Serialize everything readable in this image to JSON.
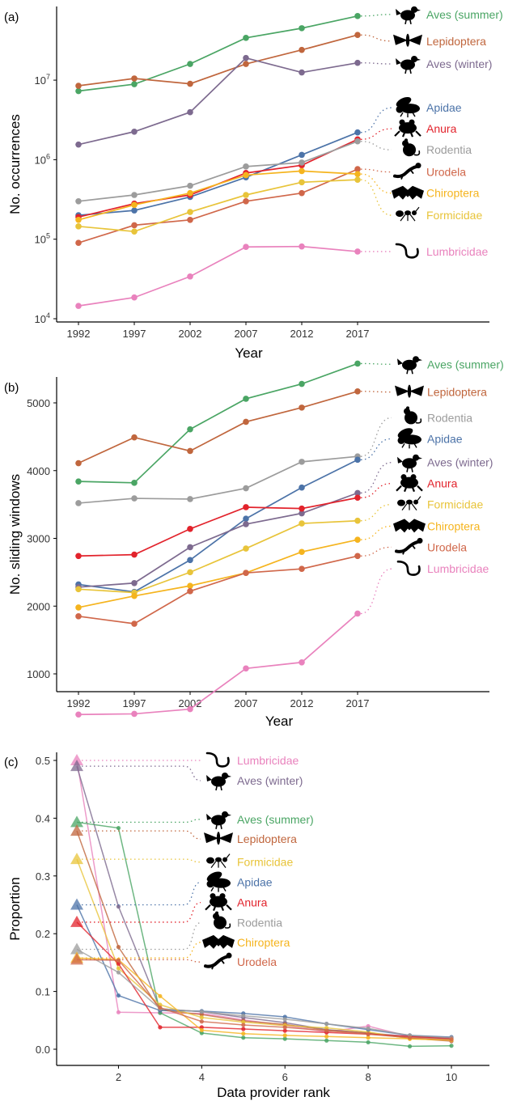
{
  "colors": {
    "Aves (summer)": "#4aa564",
    "Lepidoptera": "#c0663d",
    "Aves (winter)": "#7d6a8f",
    "Apidae": "#4c73a8",
    "Anura": "#e2232c",
    "Rodentia": "#9c9c9c",
    "Urodela": "#d0674a",
    "Chiroptera": "#f5b41e",
    "Formicidae": "#e8c43a",
    "Lumbricidae": "#e982bd"
  },
  "icons": {
    "Aves (summer)": "bird-icon",
    "Aves (winter)": "bird-icon",
    "Lepidoptera": "moth-icon",
    "Apidae": "bee-icon",
    "Anura": "frog-icon",
    "Rodentia": "rodent-icon",
    "Urodela": "salamander-icon",
    "Chiroptera": "bat-icon",
    "Formicidae": "ant-icon",
    "Lumbricidae": "worm-icon"
  },
  "chart_data": [
    {
      "panel": "(a)",
      "type": "line",
      "xlabel": "Year",
      "ylabel": "No. occurrences",
      "yscale": "log",
      "ylim": [
        10000,
        70000000
      ],
      "yticks": [
        10000,
        100000,
        1000000,
        10000000
      ],
      "ytick_labels": [
        [
          "10",
          "4"
        ],
        [
          "10",
          "5"
        ],
        [
          "10",
          "6"
        ],
        [
          "10",
          "7"
        ]
      ],
      "x": [
        1992,
        1997,
        2002,
        2007,
        2012,
        2017
      ],
      "xticks": [
        "1992",
        "1997",
        "2002",
        "2007",
        "2012",
        "2017"
      ],
      "series": [
        {
          "name": "Aves (summer)",
          "values": [
            7300000,
            8900000,
            16000000,
            34000000,
            45000000,
            64000000
          ]
        },
        {
          "name": "Lepidoptera",
          "values": [
            8500000,
            10500000,
            9000000,
            16000000,
            24000000,
            37000000
          ]
        },
        {
          "name": "Aves (winter)",
          "values": [
            1550000,
            2250000,
            3950000,
            19000000,
            12500000,
            16500000
          ]
        },
        {
          "name": "Apidae",
          "values": [
            200000,
            230000,
            340000,
            600000,
            1150000,
            2200000
          ]
        },
        {
          "name": "Anura",
          "values": [
            190000,
            280000,
            360000,
            680000,
            850000,
            1800000
          ]
        },
        {
          "name": "Rodentia",
          "values": [
            300000,
            360000,
            470000,
            820000,
            920000,
            1700000
          ]
        },
        {
          "name": "Urodela",
          "values": [
            90000,
            150000,
            175000,
            300000,
            380000,
            760000
          ]
        },
        {
          "name": "Chiroptera",
          "values": [
            175000,
            270000,
            380000,
            640000,
            720000,
            660000
          ]
        },
        {
          "name": "Formicidae",
          "values": [
            145000,
            125000,
            220000,
            360000,
            520000,
            560000
          ]
        },
        {
          "name": "Lumbricidae",
          "values": [
            14500,
            18500,
            34000,
            80000,
            81000,
            70000
          ]
        }
      ],
      "labels": [
        {
          "series": "Aves (summer)",
          "text": "Aves (summer)",
          "pos": 67000000
        },
        {
          "series": "Lepidoptera",
          "text": "Lepidoptera",
          "pos": 31000000
        },
        {
          "series": "Aves (winter)",
          "text": "Aves (winter)",
          "pos": 16000000
        },
        {
          "series": "Apidae",
          "text": "Apidae",
          "pos": 4500000
        },
        {
          "series": "Anura",
          "text": "Anura",
          "pos": 2450000
        },
        {
          "series": "Rodentia",
          "text": "Rodentia",
          "pos": 1330000
        },
        {
          "series": "Urodela",
          "text": "Urodela",
          "pos": 700000
        },
        {
          "series": "Chiroptera",
          "text": "Chiroptera",
          "pos": 380000
        },
        {
          "series": "Formicidae",
          "text": "Formicidae",
          "pos": 200000
        },
        {
          "series": "Lumbricidae",
          "text": "Lumbricidae",
          "pos": 70000
        }
      ]
    },
    {
      "panel": "(b)",
      "type": "line",
      "xlabel": "Year",
      "ylabel": "No. sliding windows",
      "ylim": [
        0,
        6000
      ],
      "yticks": [
        1000,
        2000,
        3000,
        4000,
        5000
      ],
      "x": [
        1992,
        1997,
        2002,
        2007,
        2012,
        2017
      ],
      "xticks": [
        "1992",
        "1997",
        "2002",
        "2007",
        "2012",
        "2017"
      ],
      "series": [
        {
          "name": "Aves (summer)",
          "values": [
            3840,
            3820,
            4610,
            5060,
            5280,
            5580
          ]
        },
        {
          "name": "Lepidoptera",
          "values": [
            4110,
            4490,
            4290,
            4720,
            4930,
            5170
          ]
        },
        {
          "name": "Rodentia",
          "values": [
            3520,
            3590,
            3580,
            3740,
            4130,
            4210
          ]
        },
        {
          "name": "Apidae",
          "values": [
            2320,
            2210,
            2680,
            3290,
            3750,
            4160
          ]
        },
        {
          "name": "Aves (winter)",
          "values": [
            2280,
            2340,
            2870,
            3210,
            3370,
            3670
          ]
        },
        {
          "name": "Anura",
          "values": [
            2740,
            2760,
            3140,
            3460,
            3440,
            3600
          ]
        },
        {
          "name": "Formicidae",
          "values": [
            2250,
            2200,
            2500,
            2850,
            3220,
            3260
          ]
        },
        {
          "name": "Chiroptera",
          "values": [
            1980,
            2150,
            2300,
            2490,
            2800,
            2980
          ]
        },
        {
          "name": "Urodela",
          "values": [
            1850,
            1740,
            2220,
            2490,
            2550,
            2740
          ]
        },
        {
          "name": "Lumbricidae",
          "values": [
            400,
            410,
            480,
            1080,
            1170,
            1890
          ]
        }
      ],
      "labels": [
        {
          "series": "Aves (summer)",
          "text": "Aves (summer)",
          "pos": 5570
        },
        {
          "series": "Lepidoptera",
          "text": "Lepidoptera",
          "pos": 5160
        },
        {
          "series": "Rodentia",
          "text": "Rodentia",
          "pos": 4780
        },
        {
          "series": "Apidae",
          "text": "Apidae",
          "pos": 4470
        },
        {
          "series": "Aves (winter)",
          "text": "Aves (winter)",
          "pos": 4120
        },
        {
          "series": "Anura",
          "text": "Anura",
          "pos": 3810
        },
        {
          "series": "Formicidae",
          "text": "Formicidae",
          "pos": 3500
        },
        {
          "series": "Chiroptera",
          "text": "Chiroptera",
          "pos": 3180
        },
        {
          "series": "Urodela",
          "text": "Urodela",
          "pos": 2870
        },
        {
          "series": "Lumbricidae",
          "text": "Lumbricidae",
          "pos": 2550
        }
      ]
    },
    {
      "panel": "(c)",
      "type": "line",
      "xlabel": "Data provider rank",
      "ylabel": "Proportion",
      "xlim": [
        0.25,
        10.75
      ],
      "ylim": [
        -0.02,
        0.53
      ],
      "yticks": [
        0.0,
        0.1,
        0.2,
        0.3,
        0.4,
        0.5
      ],
      "ytick_labels": [
        "0.0",
        "0.1",
        "0.2",
        "0.3",
        "0.4",
        "0.5"
      ],
      "xticks": [
        2,
        4,
        6,
        8,
        10
      ],
      "xtick_labels": [
        "2",
        "4",
        "6",
        "8",
        "10"
      ],
      "x": [
        1,
        2,
        3,
        4,
        5,
        6,
        7,
        8,
        9,
        10
      ],
      "series": [
        {
          "name": "Lumbricidae",
          "values": [
            0.5,
            0.064,
            0.063,
            0.062,
            0.051,
            0.041,
            0.03,
            0.04,
            0.022,
            0.02
          ]
        },
        {
          "name": "Aves (winter)",
          "values": [
            0.49,
            0.247,
            0.07,
            0.065,
            0.055,
            0.046,
            0.034,
            0.028,
            0.022,
            0.018
          ]
        },
        {
          "name": "Aves (summer)",
          "values": [
            0.393,
            0.383,
            0.063,
            0.028,
            0.02,
            0.018,
            0.015,
            0.012,
            0.005,
            0.006
          ]
        },
        {
          "name": "Lepidoptera",
          "values": [
            0.378,
            0.177,
            0.068,
            0.06,
            0.049,
            0.043,
            0.033,
            0.028,
            0.019,
            0.014
          ]
        },
        {
          "name": "Formicidae",
          "values": [
            0.329,
            0.14,
            0.077,
            0.055,
            0.047,
            0.041,
            0.037,
            0.03,
            0.018,
            0.016
          ]
        },
        {
          "name": "Apidae",
          "values": [
            0.25,
            0.093,
            0.067,
            0.066,
            0.062,
            0.056,
            0.044,
            0.034,
            0.024,
            0.021
          ]
        },
        {
          "name": "Anura",
          "values": [
            0.22,
            0.148,
            0.038,
            0.038,
            0.035,
            0.032,
            0.029,
            0.026,
            0.022,
            0.019
          ]
        },
        {
          "name": "Rodentia",
          "values": [
            0.173,
            0.133,
            0.07,
            0.065,
            0.058,
            0.052,
            0.044,
            0.036,
            0.024,
            0.02
          ]
        },
        {
          "name": "Chiroptera",
          "values": [
            0.158,
            0.155,
            0.092,
            0.033,
            0.027,
            0.024,
            0.022,
            0.02,
            0.018,
            0.016
          ]
        },
        {
          "name": "Urodela",
          "values": [
            0.155,
            0.154,
            0.072,
            0.048,
            0.042,
            0.038,
            0.032,
            0.026,
            0.02,
            0.017
          ]
        }
      ],
      "labels": [
        {
          "series": "Lumbricidae",
          "text": "Lumbricidae",
          "pos": 0.5
        },
        {
          "series": "Aves (winter)",
          "text": "Aves (winter)",
          "pos": 0.465
        },
        {
          "series": "Aves (summer)",
          "text": "Aves (summer)",
          "pos": 0.398
        },
        {
          "series": "Lepidoptera",
          "text": "Lepidoptera",
          "pos": 0.364
        },
        {
          "series": "Formicidae",
          "text": "Formicidae",
          "pos": 0.324
        },
        {
          "series": "Apidae",
          "text": "Apidae",
          "pos": 0.289
        },
        {
          "series": "Anura",
          "text": "Anura",
          "pos": 0.254
        },
        {
          "series": "Rodentia",
          "text": "Rodentia",
          "pos": 0.219
        },
        {
          "series": "Chiroptera",
          "text": "Chiroptera",
          "pos": 0.185
        },
        {
          "series": "Urodela",
          "text": "Urodela",
          "pos": 0.151
        }
      ]
    }
  ]
}
